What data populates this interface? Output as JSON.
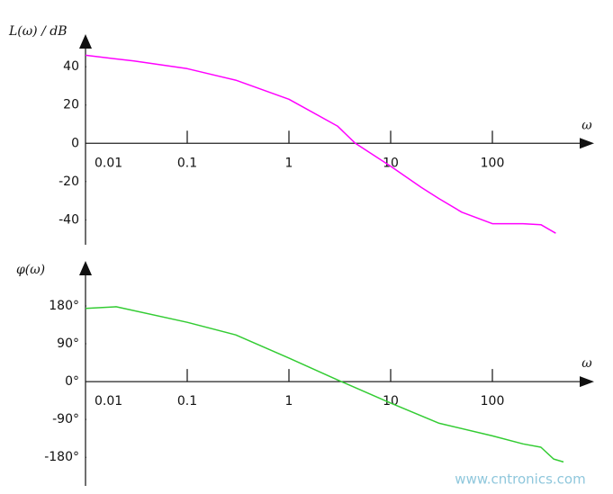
{
  "chart_data": [
    {
      "type": "line",
      "y_label": "L(ω) / dB",
      "x_label": "ω",
      "log_x": true,
      "xlim": [
        0.01,
        1000
      ],
      "xticks": [
        0.01,
        0.1,
        1,
        10,
        100
      ],
      "ylim": [
        -53,
        57
      ],
      "yticks": [
        -40,
        -20,
        0,
        20,
        40
      ],
      "x": [
        0.01,
        0.03,
        0.1,
        0.3,
        1,
        3,
        4.5,
        10,
        20,
        30,
        50,
        100,
        200,
        300,
        420
      ],
      "values": [
        46,
        43,
        39,
        33,
        23,
        9,
        0,
        -12,
        -23,
        -29,
        -36,
        -42,
        -42,
        -42.5,
        -47
      ],
      "color": "#ff00ff"
    },
    {
      "type": "line",
      "y_label": "φ(ω)",
      "x_label": "ω",
      "log_x": true,
      "xlim": [
        0.01,
        1000
      ],
      "xticks": [
        0.01,
        0.1,
        1,
        10,
        100
      ],
      "ylim": [
        -248,
        287
      ],
      "yticks": [
        {
          "value": -180,
          "label": "-180°"
        },
        {
          "value": -90,
          "label": "-90°"
        },
        {
          "value": 0,
          "label": "0°"
        },
        {
          "value": 90,
          "label": "90°"
        },
        {
          "value": 180,
          "label": "180°"
        }
      ],
      "x": [
        0.01,
        0.02,
        0.1,
        0.3,
        1,
        3,
        10,
        30,
        100,
        200,
        300,
        400,
        500
      ],
      "values": [
        174,
        178,
        141,
        111,
        56,
        4,
        -51,
        -99,
        -129,
        -148,
        -156,
        -184,
        -191
      ],
      "color": "#33cc33"
    }
  ],
  "watermark": "www.cntronics.com"
}
